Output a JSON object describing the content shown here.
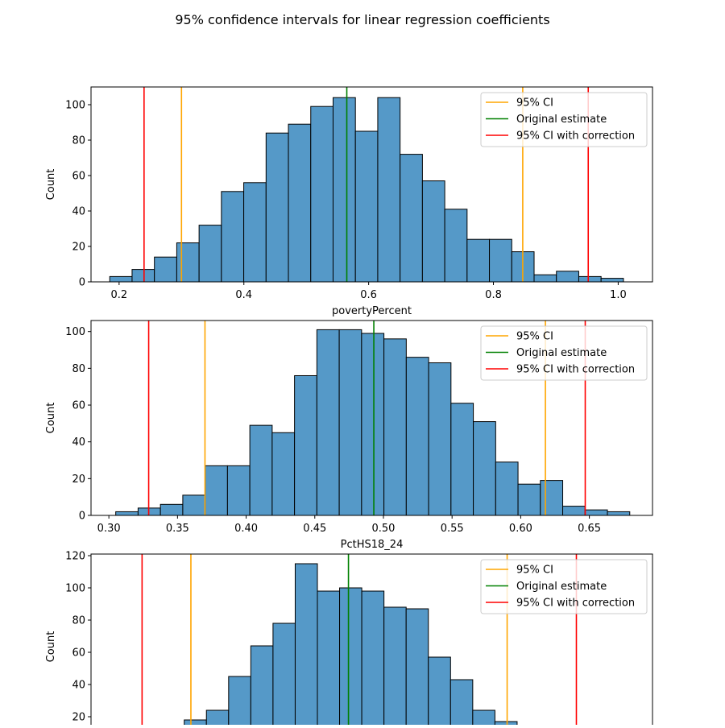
{
  "figure": {
    "title": "95% confidence intervals for linear regression coefficients"
  },
  "colors": {
    "bar_fill": "#5599c8",
    "bar_edge": "#000000",
    "ci": "#ffa500",
    "estimate": "#008000",
    "ci_corrected": "#ff0000"
  },
  "legend_labels": [
    "95% CI",
    "Original estimate",
    "95% CI with correction"
  ],
  "chart_data": [
    {
      "type": "bar",
      "title": "",
      "xlabel": "povertyPercent",
      "ylabel": "Count",
      "xlim": [
        0.155,
        1.055
      ],
      "ylim": [
        0,
        110
      ],
      "xticks": [
        0.2,
        0.4,
        0.6,
        0.8,
        1.0
      ],
      "xtick_labels": [
        "0.2",
        "0.4",
        "0.6",
        "0.8",
        "1.0"
      ],
      "yticks": [
        0,
        20,
        40,
        60,
        80,
        100
      ],
      "bin_start": 0.185,
      "bin_width": 0.0358,
      "counts": [
        3,
        7,
        14,
        22,
        32,
        51,
        56,
        84,
        89,
        99,
        104,
        85,
        104,
        72,
        57,
        41,
        24,
        24,
        17,
        4,
        6,
        3,
        2
      ],
      "lines": {
        "ci": [
          0.3,
          0.847
        ],
        "estimate": 0.565,
        "ci_corrected": [
          0.24,
          0.952
        ]
      },
      "legend": "top-right",
      "grid": false
    },
    {
      "type": "bar",
      "title": "",
      "xlabel": "PctHS18_24",
      "ylabel": "Count",
      "xlim": [
        0.287,
        0.696
      ],
      "ylim": [
        0,
        106
      ],
      "xticks": [
        0.3,
        0.35,
        0.4,
        0.45,
        0.5,
        0.55,
        0.6,
        0.65
      ],
      "xtick_labels": [
        "0.30",
        "0.35",
        "0.40",
        "0.45",
        "0.50",
        "0.55",
        "0.60",
        "0.65"
      ],
      "yticks": [
        0,
        20,
        40,
        60,
        80,
        100
      ],
      "bin_start": 0.305,
      "bin_width": 0.01628,
      "counts": [
        2,
        4,
        6,
        11,
        27,
        27,
        49,
        45,
        76,
        101,
        101,
        99,
        96,
        86,
        83,
        61,
        51,
        29,
        17,
        19,
        5,
        3,
        2
      ],
      "lines": {
        "ci": [
          0.37,
          0.618
        ],
        "estimate": 0.493,
        "ci_corrected": [
          0.329,
          0.647
        ]
      },
      "legend": "top-right",
      "grid": false
    },
    {
      "type": "bar",
      "title": "",
      "xlabel": "",
      "ylabel": "Count",
      "xlim": [
        0.0,
        25.3
      ],
      "ylim": [
        0,
        121
      ],
      "xticks": [],
      "xtick_labels": [],
      "yticks": [
        20,
        40,
        60,
        80,
        100,
        120
      ],
      "bin_start": 4.2,
      "bin_width": 1.0,
      "counts": [
        18,
        24,
        45,
        64,
        78,
        115,
        98,
        100,
        98,
        88,
        87,
        57,
        43,
        24,
        17
      ],
      "lines": {
        "ci": [
          4.5,
          18.75
        ],
        "estimate": 11.6,
        "ci_corrected": [
          2.3,
          21.87
        ]
      },
      "legend": "top-right",
      "grid": false
    }
  ]
}
